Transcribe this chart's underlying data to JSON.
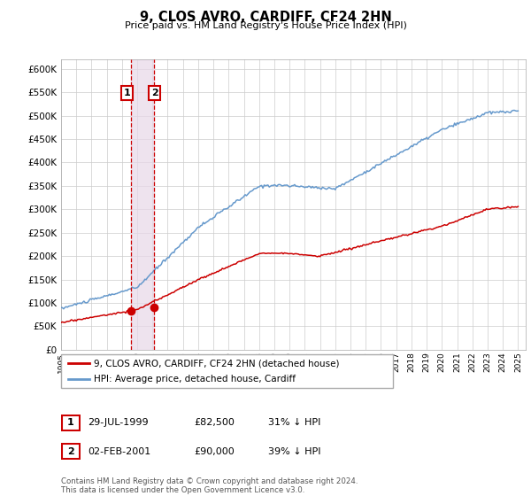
{
  "title": "9, CLOS AVRO, CARDIFF, CF24 2HN",
  "subtitle": "Price paid vs. HM Land Registry's House Price Index (HPI)",
  "background_color": "#ffffff",
  "grid_color": "#cccccc",
  "purchase1_date": "29-JUL-1999",
  "purchase1_price": 82500,
  "purchase1_label": "1",
  "purchase1_pct": "31% ↓ HPI",
  "purchase2_date": "02-FEB-2001",
  "purchase2_price": 90000,
  "purchase2_label": "2",
  "purchase2_pct": "39% ↓ HPI",
  "legend_line1": "9, CLOS AVRO, CARDIFF, CF24 2HN (detached house)",
  "legend_line2": "HPI: Average price, detached house, Cardiff",
  "footer": "Contains HM Land Registry data © Crown copyright and database right 2024.\nThis data is licensed under the Open Government Licence v3.0.",
  "hpi_color": "#6699cc",
  "price_color": "#cc0000",
  "vline_color": "#cc0000",
  "vshade_color": "#e8d8e8",
  "ylim": [
    0,
    620000
  ],
  "yticks": [
    0,
    50000,
    100000,
    150000,
    200000,
    250000,
    300000,
    350000,
    400000,
    450000,
    500000,
    550000,
    600000
  ],
  "xmin": 1995,
  "xmax": 2025.5
}
